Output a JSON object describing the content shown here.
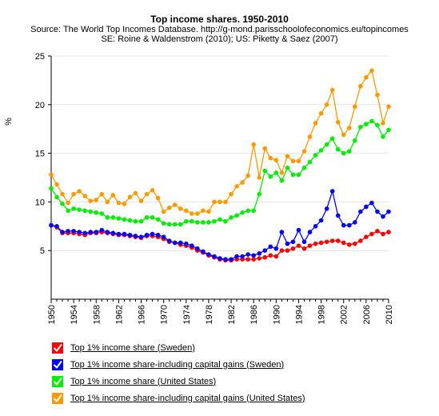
{
  "chart_data": {
    "type": "line",
    "title": "Top income shares. 1950-2010",
    "subtitle_lines": [
      "Source: The World Top Incomes Database. http://g-mond.parisschoolofeconomics.eu/topincomes",
      "SE: Roine & Waldenstrom (2010); US: Piketty & Saez (2007)"
    ],
    "ylabel": "%",
    "xlabel": "",
    "xlim": [
      1950,
      2010
    ],
    "ylim": [
      0,
      25
    ],
    "x_ticks": [
      1950,
      1954,
      1958,
      1962,
      1966,
      1970,
      1974,
      1978,
      1982,
      1986,
      1990,
      1994,
      1998,
      2002,
      2006,
      2010
    ],
    "y_ticks": [
      5,
      10,
      15,
      20,
      25
    ],
    "legend_position": "bottom-left",
    "series": [
      {
        "name": "Top 1% income share (Sweden)",
        "color": "#ff0000",
        "x": [
          1950,
          1951,
          1952,
          1953,
          1954,
          1955,
          1956,
          1957,
          1958,
          1959,
          1960,
          1961,
          1962,
          1963,
          1964,
          1965,
          1966,
          1967,
          1968,
          1969,
          1970,
          1971,
          1972,
          1973,
          1974,
          1975,
          1976,
          1977,
          1978,
          1979,
          1980,
          1981,
          1982,
          1983,
          1984,
          1985,
          1986,
          1987,
          1988,
          1989,
          1990,
          1991,
          1992,
          1993,
          1994,
          1995,
          1996,
          1997,
          1998,
          1999,
          2000,
          2001,
          2002,
          2003,
          2004,
          2005,
          2006,
          2007,
          2008,
          2009,
          2010
        ],
        "values": [
          7.6,
          7.4,
          6.8,
          6.8,
          6.8,
          6.7,
          6.6,
          6.8,
          6.8,
          6.9,
          6.8,
          6.7,
          6.6,
          6.6,
          6.5,
          6.4,
          6.3,
          6.5,
          6.5,
          6.4,
          6.2,
          5.9,
          5.8,
          5.6,
          5.5,
          5.3,
          5.0,
          4.8,
          4.5,
          4.3,
          4.1,
          4.0,
          4.0,
          4.1,
          4.1,
          4.1,
          4.1,
          4.2,
          4.3,
          4.5,
          4.4,
          5.0,
          5.0,
          5.2,
          5.5,
          5.2,
          5.5,
          5.7,
          5.8,
          5.9,
          6.0,
          6.0,
          5.8,
          5.6,
          5.7,
          6.0,
          6.4,
          6.7,
          7.0,
          6.7,
          6.9
        ]
      },
      {
        "name": "Top 1% income share-including capital gains (Sweden)",
        "color": "#0000ff",
        "x": [
          1950,
          1951,
          1952,
          1953,
          1954,
          1955,
          1956,
          1957,
          1958,
          1959,
          1960,
          1961,
          1962,
          1963,
          1964,
          1965,
          1966,
          1967,
          1968,
          1969,
          1970,
          1971,
          1972,
          1973,
          1974,
          1975,
          1976,
          1977,
          1978,
          1979,
          1980,
          1981,
          1982,
          1983,
          1984,
          1985,
          1986,
          1987,
          1988,
          1989,
          1990,
          1991,
          1992,
          1993,
          1994,
          1995,
          1996,
          1997,
          1998,
          1999,
          2000,
          2001,
          2002,
          2003,
          2004,
          2005,
          2006,
          2007,
          2008,
          2009,
          2010
        ],
        "values": [
          7.6,
          7.5,
          6.9,
          7.0,
          7.0,
          6.9,
          6.8,
          6.9,
          6.9,
          7.1,
          6.9,
          6.8,
          6.7,
          6.7,
          6.6,
          6.5,
          6.4,
          6.6,
          6.7,
          6.6,
          6.4,
          6.0,
          5.8,
          5.8,
          5.7,
          5.5,
          5.2,
          4.9,
          4.6,
          4.4,
          4.2,
          4.1,
          4.1,
          4.4,
          4.4,
          4.6,
          4.5,
          4.7,
          5.0,
          5.4,
          5.2,
          6.9,
          5.7,
          5.9,
          7.1,
          5.9,
          6.9,
          7.5,
          8.1,
          9.3,
          11.1,
          8.6,
          7.6,
          7.6,
          7.9,
          9.0,
          9.5,
          9.9,
          9.0,
          8.5,
          9.0
        ]
      },
      {
        "name": "Top 1% income share (United States)",
        "color": "#00ee00",
        "x": [
          1950,
          1951,
          1952,
          1953,
          1954,
          1955,
          1956,
          1957,
          1958,
          1959,
          1960,
          1961,
          1962,
          1963,
          1964,
          1965,
          1966,
          1967,
          1968,
          1969,
          1970,
          1971,
          1972,
          1973,
          1974,
          1975,
          1976,
          1977,
          1978,
          1979,
          1980,
          1981,
          1982,
          1983,
          1984,
          1985,
          1986,
          1987,
          1988,
          1989,
          1990,
          1991,
          1992,
          1993,
          1994,
          1995,
          1996,
          1997,
          1998,
          1999,
          2000,
          2001,
          2002,
          2003,
          2004,
          2005,
          2006,
          2007,
          2008,
          2009,
          2010
        ],
        "values": [
          11.4,
          10.5,
          9.8,
          9.1,
          9.3,
          9.2,
          9.1,
          9.0,
          8.9,
          8.8,
          8.4,
          8.4,
          8.3,
          8.2,
          8.1,
          8.0,
          8.0,
          8.4,
          8.4,
          8.2,
          7.8,
          7.7,
          7.7,
          7.7,
          8.0,
          8.0,
          7.9,
          7.9,
          7.9,
          8.0,
          8.2,
          8.0,
          8.4,
          8.6,
          8.9,
          9.1,
          9.1,
          10.8,
          13.2,
          12.6,
          13.0,
          12.2,
          13.5,
          12.8,
          12.8,
          13.5,
          14.1,
          14.8,
          15.3,
          15.9,
          16.5,
          15.4,
          15.0,
          15.2,
          16.3,
          17.7,
          18.0,
          18.3,
          17.9,
          16.7,
          17.4
        ]
      },
      {
        "name": "Top 1% income share-including capital gains (United States)",
        "color": "#ff9900",
        "x": [
          1950,
          1951,
          1952,
          1953,
          1954,
          1955,
          1956,
          1957,
          1958,
          1959,
          1960,
          1961,
          1962,
          1963,
          1964,
          1965,
          1966,
          1967,
          1968,
          1969,
          1970,
          1971,
          1972,
          1973,
          1974,
          1975,
          1976,
          1977,
          1978,
          1979,
          1980,
          1981,
          1982,
          1983,
          1984,
          1985,
          1986,
          1987,
          1988,
          1989,
          1990,
          1991,
          1992,
          1993,
          1994,
          1995,
          1996,
          1997,
          1998,
          1999,
          2000,
          2001,
          2002,
          2003,
          2004,
          2005,
          2006,
          2007,
          2008,
          2009,
          2010
        ],
        "values": [
          12.8,
          11.8,
          10.8,
          9.9,
          10.8,
          11.1,
          10.6,
          10.1,
          10.2,
          10.8,
          10.0,
          10.7,
          9.9,
          9.8,
          10.5,
          10.9,
          10.1,
          10.8,
          11.2,
          10.4,
          9.0,
          9.4,
          9.7,
          9.3,
          9.1,
          8.8,
          8.8,
          9.1,
          9.0,
          10.0,
          10.0,
          10.0,
          10.8,
          11.6,
          12.0,
          12.7,
          15.9,
          12.5,
          15.5,
          14.5,
          14.3,
          13.0,
          14.7,
          14.2,
          14.2,
          15.2,
          16.7,
          18.1,
          19.1,
          20.0,
          21.5,
          18.2,
          16.9,
          17.6,
          19.8,
          21.9,
          22.8,
          23.5,
          21.0,
          18.1,
          19.8
        ]
      }
    ]
  }
}
